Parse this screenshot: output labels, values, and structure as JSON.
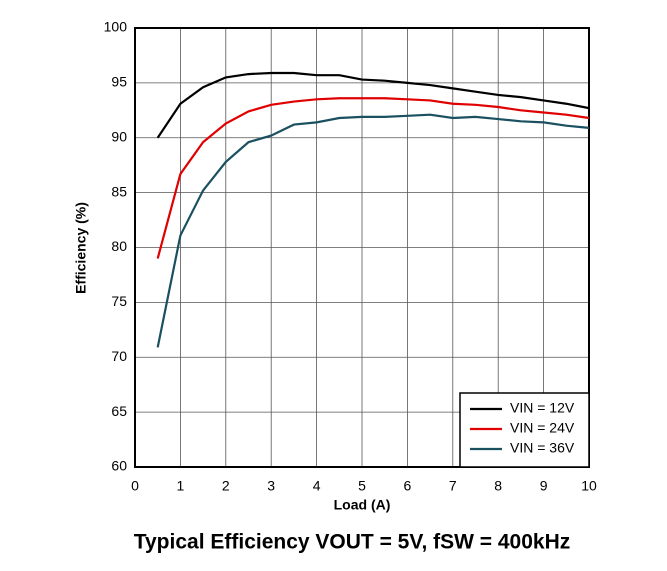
{
  "chart_data": {
    "type": "line",
    "title": "Typical Efficiency VOUT = 5V, fSW = 400kHz",
    "x_label": "Load (A)",
    "y_label": "Efficiency (%)",
    "x": [
      0.5,
      1,
      1.5,
      2,
      2.5,
      3,
      3.5,
      4,
      4.5,
      5,
      5.5,
      6,
      6.5,
      7,
      7.5,
      8,
      8.5,
      9,
      9.5,
      10
    ],
    "series": [
      {
        "name": "VIN = 12V",
        "color": "#000000",
        "values": [
          90,
          93.1,
          94.6,
          95.5,
          95.8,
          95.9,
          95.9,
          95.7,
          95.7,
          95.3,
          95.2,
          95.0,
          94.8,
          94.5,
          94.2,
          93.9,
          93.7,
          93.4,
          93.1,
          92.7
        ]
      },
      {
        "name": "VIN = 24V",
        "color": "#e00000",
        "values": [
          79,
          86.7,
          89.6,
          91.3,
          92.4,
          93.0,
          93.3,
          93.5,
          93.6,
          93.6,
          93.6,
          93.5,
          93.4,
          93.1,
          93.0,
          92.8,
          92.5,
          92.3,
          92.1,
          91.8
        ]
      },
      {
        "name": "VIN = 36V",
        "color": "#1a5060",
        "values": [
          70.9,
          81.1,
          85.2,
          87.8,
          89.6,
          90.2,
          91.2,
          91.4,
          91.8,
          91.9,
          91.9,
          92.0,
          92.1,
          91.8,
          91.9,
          91.7,
          91.5,
          91.4,
          91.1,
          90.9
        ]
      }
    ],
    "xlim": [
      0,
      10
    ],
    "xticks": [
      0,
      1,
      2,
      3,
      4,
      5,
      6,
      7,
      8,
      9,
      10
    ],
    "ylim": [
      60,
      100
    ],
    "yticks": [
      60,
      65,
      70,
      75,
      80,
      85,
      90,
      95,
      100
    ],
    "grid": true,
    "legend": "lower right"
  }
}
